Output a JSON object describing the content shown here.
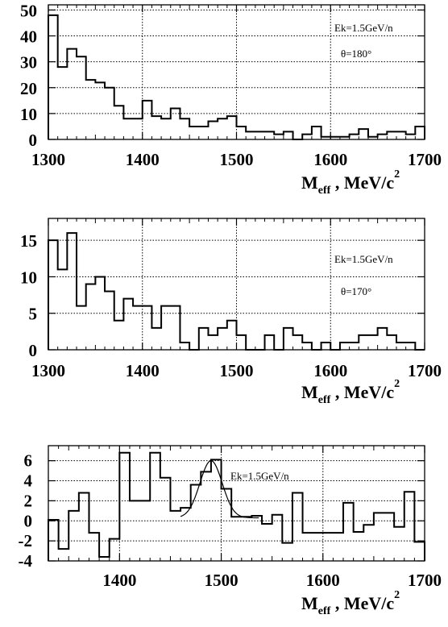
{
  "chart_data": [
    {
      "type": "histogram",
      "annotation_energy": "Ek=1.5GeV/n",
      "annotation_angle": "θ=180°",
      "xlabel": "M_eff , MeV/c^2",
      "xlim": [
        1300,
        1700
      ],
      "ylim": [
        0,
        52
      ],
      "x_ticks": [
        1300,
        1400,
        1500,
        1600,
        1700
      ],
      "y_ticks": [
        0,
        10,
        20,
        30,
        40,
        50
      ],
      "grid": true,
      "bin_width": 10,
      "bin_start": 1300,
      "values": [
        48,
        28,
        35,
        32,
        23,
        22,
        20,
        13,
        8,
        8,
        15,
        9,
        8,
        12,
        8,
        5,
        5,
        7,
        8,
        9,
        5,
        3,
        3,
        3,
        2,
        3,
        0,
        2,
        5,
        1,
        1,
        1,
        2,
        4,
        1,
        2,
        3,
        3,
        2,
        5
      ]
    },
    {
      "type": "histogram",
      "annotation_energy": "Ek=1.5GeV/n",
      "annotation_angle": "θ=170°",
      "xlabel": "M_eff , MeV/c^2",
      "xlim": [
        1300,
        1700
      ],
      "ylim": [
        0,
        18
      ],
      "x_ticks": [
        1300,
        1400,
        1500,
        1600,
        1700
      ],
      "y_ticks": [
        0,
        5,
        10,
        15
      ],
      "grid": true,
      "bin_width": 10,
      "bin_start": 1300,
      "values": [
        15,
        11,
        16,
        6,
        9,
        10,
        8,
        4,
        7,
        6,
        6,
        3,
        6,
        6,
        1,
        0,
        3,
        2,
        3,
        4,
        2,
        0,
        0,
        2,
        0,
        3,
        2,
        1,
        0,
        1,
        0,
        1,
        1,
        2,
        2,
        3,
        2,
        1,
        1,
        0
      ]
    },
    {
      "type": "histogram",
      "annotation_energy": "Ek=1.5GeV/n",
      "xlabel": "M_eff , MeV/c^2",
      "xlim": [
        1330,
        1700
      ],
      "ylim": [
        -4,
        7.5
      ],
      "x_ticks": [
        1400,
        1500,
        1600,
        1700
      ],
      "y_ticks": [
        -4,
        -2,
        0,
        2,
        4,
        6
      ],
      "grid": true,
      "bin_width": 10,
      "bin_start": 1330,
      "values": [
        0.1,
        -2.8,
        1.0,
        2.8,
        -1.2,
        -3.6,
        -1.8,
        6.8,
        2.0,
        2.0,
        6.8,
        4.3,
        1.0,
        1.3,
        3.6,
        4.9,
        6.1,
        3.2,
        0.4,
        0.4,
        0.5,
        -0.3,
        0.6,
        -2.2,
        2.8,
        -1.2,
        -1.2,
        -1.2,
        -1.2,
        1.8,
        -1.1,
        -0.4,
        0.8,
        0.8,
        -0.6,
        2.9,
        -2.1
      ],
      "fit": {
        "type": "gaussian",
        "x_range": [
          1460,
          1537
        ],
        "baseline": 0.3,
        "amplitude": 5.7,
        "mean": 1490,
        "sigma": 11
      }
    }
  ]
}
